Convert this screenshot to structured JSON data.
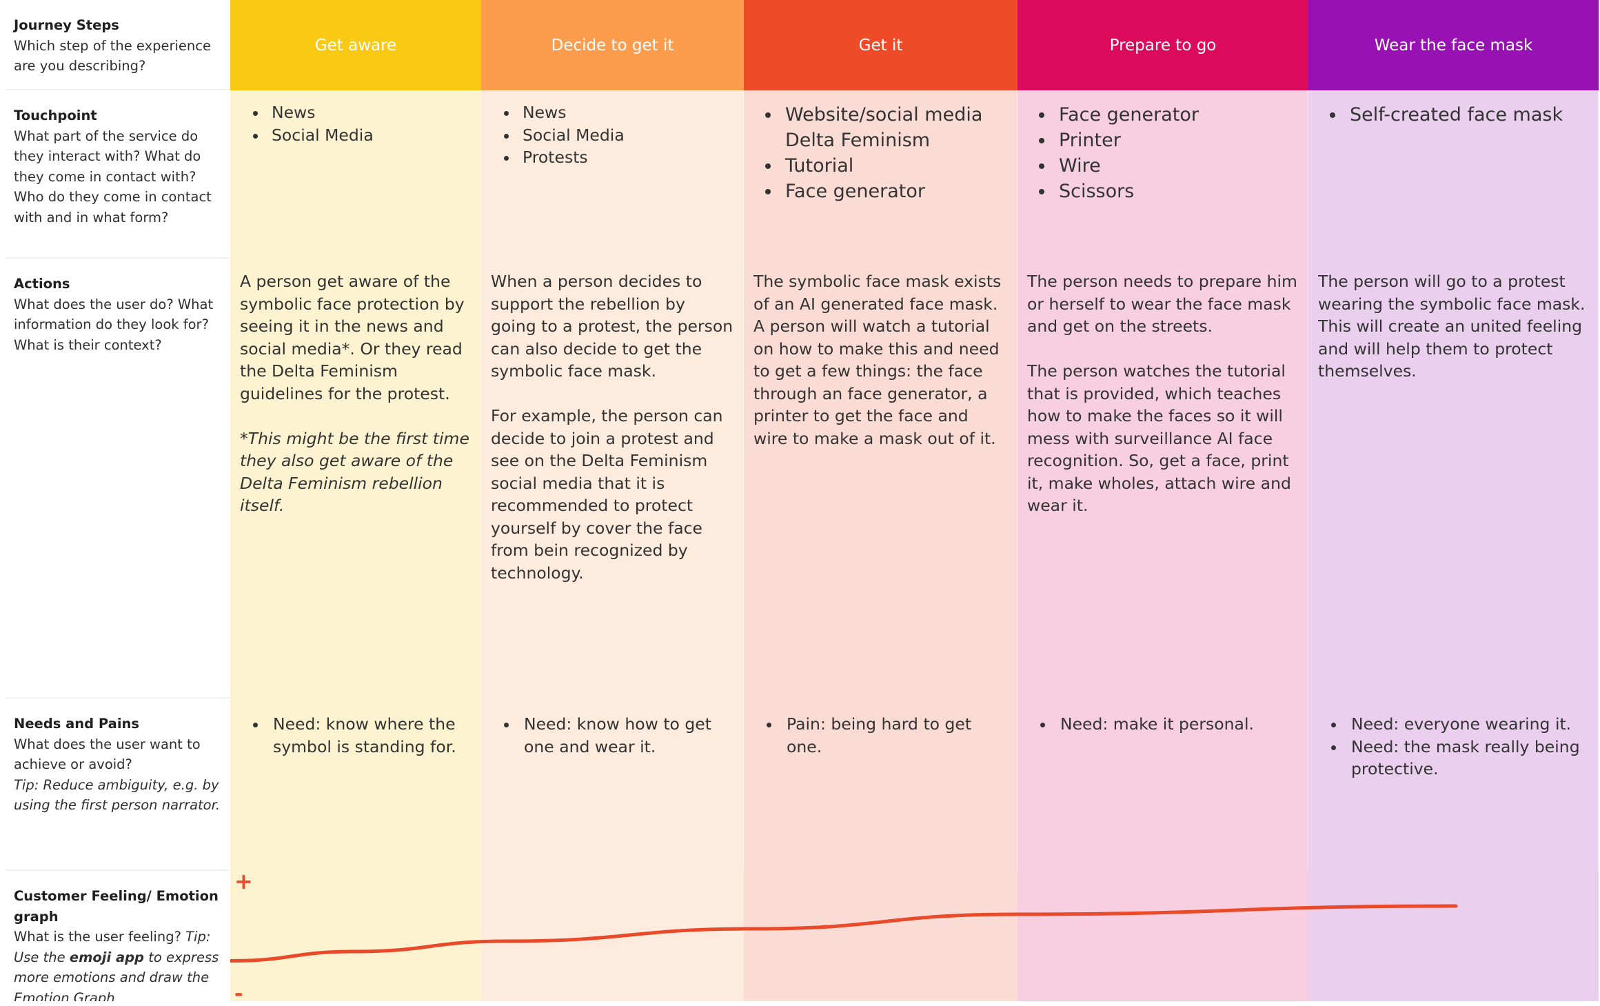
{
  "rows": {
    "journey": {
      "title": "Journey Steps",
      "question": "Which step of the experience are you describing?"
    },
    "touchpoint": {
      "title": "Touchpoint",
      "question": "What part of the service do they interact with? What do they come in contact with? Who do they come in contact with and in what form?"
    },
    "actions": {
      "title": "Actions",
      "question": "What does the user do? What information do they look for? What is their context?"
    },
    "needs": {
      "title": "Needs and Pains",
      "question": "What does the user want to achieve or avoid?",
      "tip": "Tip: Reduce ambiguity, e.g. by using the first person narrator."
    },
    "feeling": {
      "title": "Customer Feeling/ Emotion graph",
      "question": "What is the user feeling?",
      "tip_prefix": "Tip: Use the",
      "tip_bold": "emoji app",
      "tip_suffix": "to express more emotions and draw the Emotion Graph"
    }
  },
  "steps": [
    {
      "title": "Get aware",
      "header_color": "#f9c913",
      "bg_color": "#fdf3d1",
      "touchpoints": [
        "News",
        "Social Media"
      ],
      "actions": [
        "A person get aware of the symbolic face protection by seeing it in the news and social media*. Or they read the Delta Feminism guidelines for the protest."
      ],
      "actions_note": "*This might be the first time they also get aware of the Delta Feminism rebellion itself.",
      "needs": [
        "Need: know where the symbol is standing for."
      ]
    },
    {
      "title": "Decide to get it",
      "header_color": "#fd9c4d",
      "bg_color": "#fdecdd",
      "touchpoints": [
        "News",
        "Social Media",
        "Protests"
      ],
      "actions": [
        "When a person decides to support the rebellion by going to a protest, the person can also decide to get the symbolic face mask.",
        "For example, the person can decide to join a protest and see on the Delta Feminism social media that it is recommended to protect yourself by cover the face from bein recognized by technology."
      ],
      "needs": [
        "Need: know how to get one and wear it."
      ]
    },
    {
      "title": "Get it",
      "header_color": "#f04b29",
      "bg_color": "#fbdcd5",
      "touchpoints": [
        "Website/social media Delta Feminism",
        "Tutorial",
        "Face generator"
      ],
      "actions": [
        "The symbolic face mask exists of an AI generated face mask. A person will watch a tutorial on how to make this and need to get a few things: the face through an face generator, a printer to get the face and wire to make a mask out of it."
      ],
      "needs": [
        "Pain: being hard to get one."
      ]
    },
    {
      "title": "Prepare to go",
      "header_color": "#db0a5b",
      "bg_color": "#f8cfe1",
      "touchpoints": [
        "Face generator",
        "Printer",
        "Wire",
        "Scissors"
      ],
      "actions": [
        "The person needs to prepare him or herself to wear the face mask and get on the streets.",
        "The person watches the tutorial that is provided, which teaches how to make the faces so it will mess with surveillance AI face recognition. So, get a face, print it, make wholes, attach wire and wear it."
      ],
      "needs": [
        "Need: make it personal."
      ]
    },
    {
      "title": "Wear the face mask",
      "header_color": "#9711b3",
      "bg_color": "#eacfee",
      "touchpoints": [
        "Self-created face mask"
      ],
      "actions": [
        "The person will go to a protest wearing the symbolic face mask. This will create an united feeling and will help them to protect themselves."
      ],
      "needs": [
        "Need: everyone wearing it.",
        "Need: the mask really being protective."
      ]
    }
  ],
  "emotion": {
    "plus_label": "+",
    "minus_label": "-",
    "line_color": "#e84a2a",
    "scale": [
      -1,
      1
    ],
    "levels": [
      -0.19,
      -0.1,
      0.0,
      0.12,
      0.26,
      0.34
    ]
  }
}
